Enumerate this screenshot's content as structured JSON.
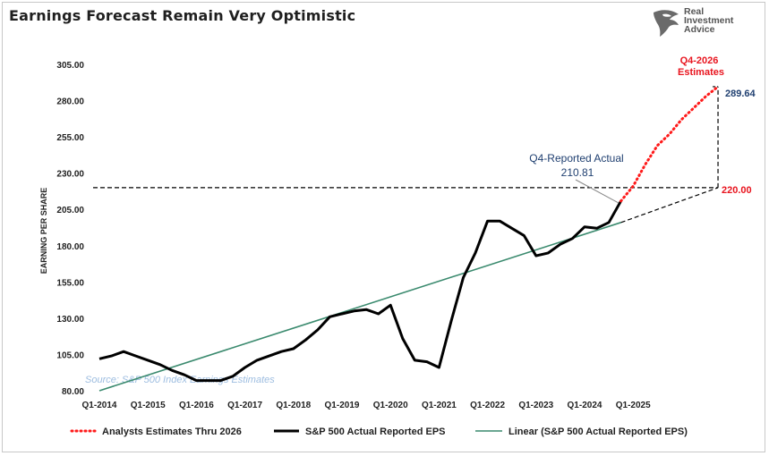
{
  "title": "Earnings Forecast Remain Very Optimistic",
  "logo": {
    "line1": "Real",
    "line2": "Investment",
    "line3": "Advice",
    "icon": "eagle-icon"
  },
  "source_note": "Source: S&P 500 Index Earnings Estimates",
  "annotations": {
    "reported_label": "Q4-Reported Actual",
    "reported_value": "210.81",
    "estimate_label_line1": "Q4-2026",
    "estimate_label_line2": "Estimates",
    "estimate_value": "289.64",
    "baseline_value": "220.00"
  },
  "colors": {
    "actual": "#000000",
    "estimates": "#ff1a1a",
    "trend": "#3a8a6e",
    "guide": "#000000"
  },
  "chart_data": {
    "type": "line",
    "ylabel": "EARNING PER SHARE",
    "ylim": [
      80,
      305
    ],
    "y_ticks": [
      "305.00",
      "280.00",
      "255.00",
      "230.00",
      "205.00",
      "180.00",
      "155.00",
      "130.00",
      "105.00",
      "80.00"
    ],
    "x_tick_labels": [
      "Q1-2014",
      "Q1-2015",
      "Q1-2016",
      "Q1-2017",
      "Q1-2018",
      "Q1-2019",
      "Q1-2020",
      "Q1-2021",
      "Q1-2022",
      "Q1-2023",
      "Q1-2024",
      "Q1-2025"
    ],
    "grid": false,
    "legend_position": "bottom",
    "series": [
      {
        "name": "Analysts Estimates Thru 2026",
        "style": "dotted",
        "x": [
          "Q4-2024",
          "Q1-2025",
          "Q2-2025",
          "Q3-2025",
          "Q4-2025",
          "Q1-2026",
          "Q2-2026",
          "Q3-2026",
          "Q4-2026"
        ],
        "values": [
          210.81,
          221,
          236,
          249,
          257,
          267,
          275,
          283,
          289.64
        ]
      },
      {
        "name": "S&P 500 Actual Reported EPS",
        "style": "solid",
        "x": [
          "Q1-2014",
          "Q2-2014",
          "Q3-2014",
          "Q4-2014",
          "Q1-2015",
          "Q2-2015",
          "Q3-2015",
          "Q4-2015",
          "Q1-2016",
          "Q2-2016",
          "Q3-2016",
          "Q4-2016",
          "Q1-2017",
          "Q2-2017",
          "Q3-2017",
          "Q4-2017",
          "Q1-2018",
          "Q2-2018",
          "Q3-2018",
          "Q4-2018",
          "Q1-2019",
          "Q2-2019",
          "Q3-2019",
          "Q4-2019",
          "Q1-2020",
          "Q2-2020",
          "Q3-2020",
          "Q4-2020",
          "Q1-2021",
          "Q2-2021",
          "Q3-2021",
          "Q4-2021",
          "Q1-2022",
          "Q2-2022",
          "Q3-2022",
          "Q4-2022",
          "Q1-2023",
          "Q2-2023",
          "Q3-2023",
          "Q4-2023",
          "Q1-2024",
          "Q2-2024",
          "Q3-2024",
          "Q4-2024"
        ],
        "values": [
          102,
          104,
          107,
          104,
          101,
          98,
          94,
          91,
          87,
          87,
          87,
          90,
          96,
          101,
          104,
          107,
          109,
          115,
          122,
          131,
          133,
          135,
          136,
          133,
          139,
          116,
          101,
          100,
          96,
          128,
          158,
          175,
          197,
          197,
          192,
          187,
          173,
          175,
          181,
          185,
          193,
          192,
          196,
          210.81
        ]
      },
      {
        "name": "Linear (S&P 500 Actual Reported EPS)",
        "style": "solid-thin",
        "x": [
          "Q1-2014",
          "Q4-2024"
        ],
        "values": [
          80,
          196
        ]
      },
      {
        "name": "",
        "style": "dashed-extension",
        "x": [
          "Q4-2024",
          "Q4-2026"
        ],
        "values": [
          196,
          220
        ]
      }
    ],
    "reference_levels": [
      220,
      289.64
    ]
  }
}
